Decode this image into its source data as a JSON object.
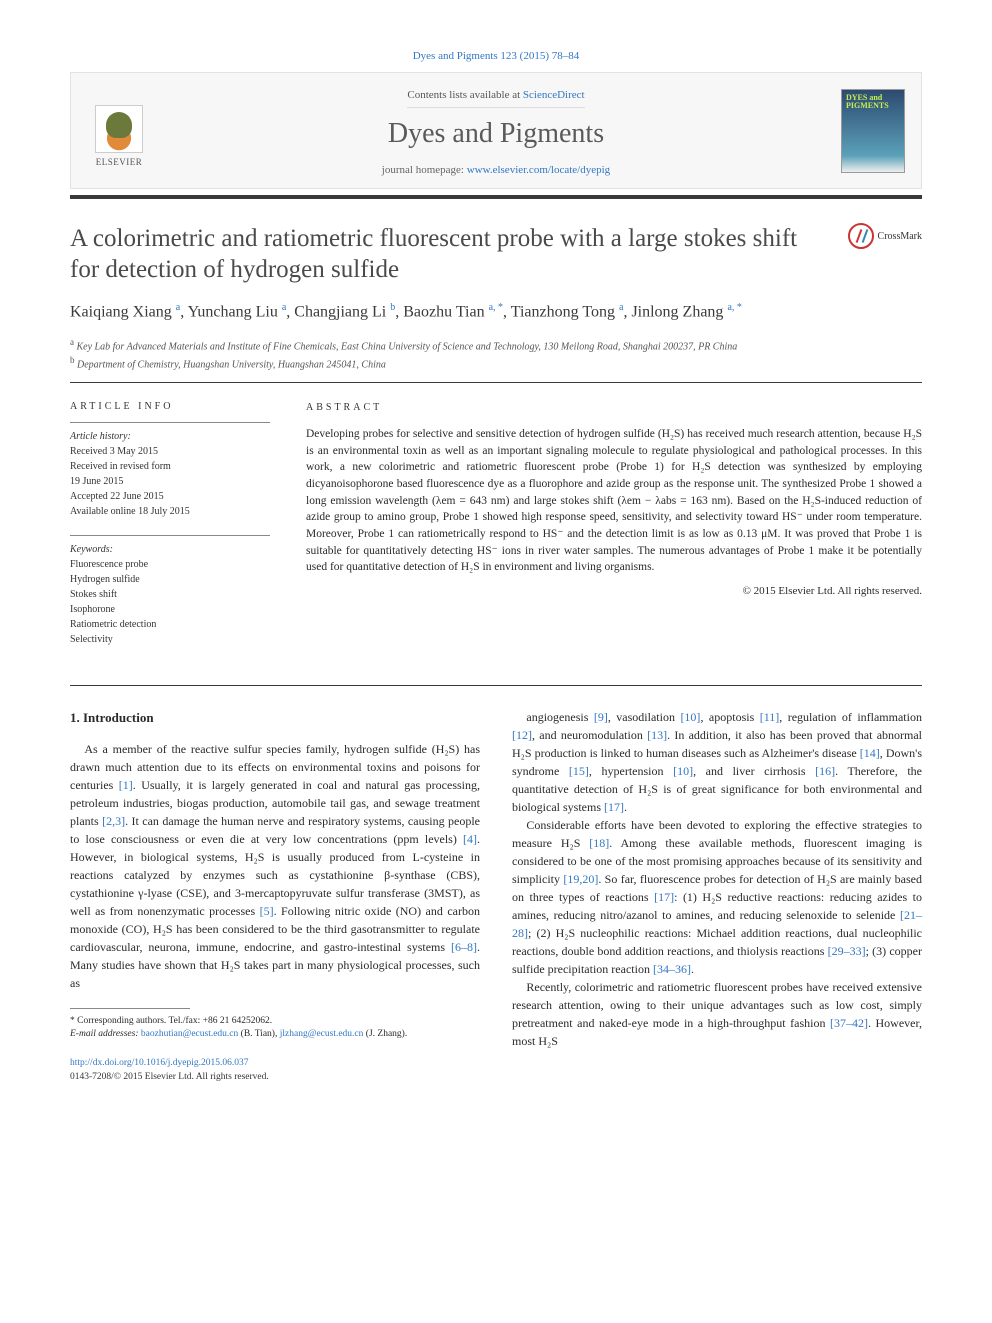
{
  "header": {
    "citation_line": "Dyes and Pigments 123 (2015) 78–84",
    "contents_prefix": "Contents lists available at ",
    "contents_link": "ScienceDirect",
    "journal_name": "Dyes and Pigments",
    "homepage_prefix": "journal homepage: ",
    "homepage_link": "www.elsevier.com/locate/dyepig",
    "elsevier_label": "ELSEVIER",
    "cover_text": "DYES and PIGMENTS"
  },
  "crossmark_label": "CrossMark",
  "article": {
    "title": "A colorimetric and ratiometric fluorescent probe with a large stokes shift for detection of hydrogen sulfide",
    "authors_html": "Kaiqiang Xiang <sup>a</sup>, Yunchang Liu <sup>a</sup>, Changjiang Li <sup>b</sup>, Baozhu Tian <sup>a, *</sup>, Tianzhong Tong <sup>a</sup>, Jinlong Zhang <sup>a, *</sup>",
    "affiliations": [
      {
        "marker": "a",
        "text": "Key Lab for Advanced Materials and Institute of Fine Chemicals, East China University of Science and Technology, 130 Meilong Road, Shanghai 200237, PR China"
      },
      {
        "marker": "b",
        "text": "Department of Chemistry, Huangshan University, Huangshan 245041, China"
      }
    ]
  },
  "article_info": {
    "heading": "ARTICLE INFO",
    "history_label": "Article history:",
    "history": [
      "Received 3 May 2015",
      "Received in revised form",
      "19 June 2015",
      "Accepted 22 June 2015",
      "Available online 18 July 2015"
    ],
    "keywords_label": "Keywords:",
    "keywords": [
      "Fluorescence probe",
      "Hydrogen sulfide",
      "Stokes shift",
      "Isophorone",
      "Ratiometric detection",
      "Selectivity"
    ]
  },
  "abstract": {
    "heading": "ABSTRACT",
    "text": "Developing probes for selective and sensitive detection of hydrogen sulfide (H₂S) has received much research attention, because H₂S is an environmental toxin as well as an important signaling molecule to regulate physiological and pathological processes. In this work, a new colorimetric and ratiometric fluorescent probe (Probe 1) for H₂S detection was synthesized by employing dicyanoisophorone based fluorescence dye as a fluorophore and azide group as the response unit. The synthesized Probe 1 showed a long emission wavelength (λem = 643 nm) and large stokes shift (λem − λabs = 163 nm). Based on the H₂S-induced reduction of azide group to amino group, Probe 1 showed high response speed, sensitivity, and selectivity toward HS⁻ under room temperature. Moreover, Probe 1 can ratiometrically respond to HS⁻ and the detection limit is as low as 0.13 μM. It was proved that Probe 1 is suitable for quantitatively detecting HS⁻ ions in river water samples. The numerous advantages of Probe 1 make it be potentially used for quantitative detection of H₂S in environment and living organisms.",
    "copyright": "© 2015 Elsevier Ltd. All rights reserved."
  },
  "body": {
    "section_heading": "1. Introduction",
    "p1": "As a member of the reactive sulfur species family, hydrogen sulfide (H₂S) has drawn much attention due to its effects on environmental toxins and poisons for centuries [1]. Usually, it is largely generated in coal and natural gas processing, petroleum industries, biogas production, automobile tail gas, and sewage treatment plants [2,3]. It can damage the human nerve and respiratory systems, causing people to lose consciousness or even die at very low concentrations (ppm levels) [4]. However, in biological systems, H₂S is usually produced from L-cysteine in reactions catalyzed by enzymes such as cystathionine β-synthase (CBS), cystathionine γ-lyase (CSE), and 3-mercaptopyruvate sulfur transferase (3MST), as well as from nonenzymatic processes [5]. Following nitric oxide (NO) and carbon monoxide (CO), H₂S has been considered to be the third gasotransmitter to regulate cardiovascular, neurona, immune, endocrine, and gastro-intestinal systems [6–8]. Many studies have shown that H₂S takes part in many physiological processes, such as",
    "p2": "angiogenesis [9], vasodilation [10], apoptosis [11], regulation of inflammation [12], and neuromodulation [13]. In addition, it also has been proved that abnormal H₂S production is linked to human diseases such as Alzheimer's disease [14], Down's syndrome [15], hypertension [10], and liver cirrhosis [16]. Therefore, the quantitative detection of H₂S is of great significance for both environmental and biological systems [17].",
    "p3": "Considerable efforts have been devoted to exploring the effective strategies to measure H₂S [18]. Among these available methods, fluorescent imaging is considered to be one of the most promising approaches because of its sensitivity and simplicity [19,20]. So far, fluorescence probes for detection of H₂S are mainly based on three types of reactions [17]: (1) H₂S reductive reactions: reducing azides to amines, reducing nitro/azanol to amines, and reducing selenoxide to selenide [21–28]; (2) H₂S nucleophilic reactions: Michael addition reactions, dual nucleophilic reactions, double bond addition reactions, and thiolysis reactions [29–33]; (3) copper sulfide precipitation reaction [34–36].",
    "p4": "Recently, colorimetric and ratiometric fluorescent probes have received extensive research attention, owing to their unique advantages such as low cost, simply pretreatment and naked-eye mode in a high-throughput fashion [37–42]. However, most H₂S"
  },
  "footnotes": {
    "corresponding": "* Corresponding authors. Tel./fax: +86 21 64252062.",
    "emails_label": "E-mail addresses:",
    "email1": "baozhutian@ecust.edu.cn",
    "email1_who": "(B. Tian),",
    "email2": "jlzhang@ecust.edu.cn",
    "email2_who": "(J. Zhang)."
  },
  "doi": {
    "url": "http://dx.doi.org/10.1016/j.dyepig.2015.06.037",
    "issn_line": "0143-7208/© 2015 Elsevier Ltd. All rights reserved."
  },
  "refs": {
    "r1": "[1]",
    "r23": "[2,3]",
    "r4": "[4]",
    "r5": "[5]",
    "r68": "[6–8]",
    "r9": "[9]",
    "r10a": "[10]",
    "r11": "[11]",
    "r12": "[12]",
    "r13": "[13]",
    "r14": "[14]",
    "r15": "[15]",
    "r10b": "[10]",
    "r16": "[16]",
    "r17a": "[17]",
    "r18": "[18]",
    "r1920": "[19,20]",
    "r17b": "[17]",
    "r2128": "[21–28]",
    "r2933": "[29–33]",
    "r3436": "[34–36]",
    "r3742": "[37–42]"
  },
  "colors": {
    "link": "#3277c3",
    "rule": "#3a3a3a",
    "text": "#2a2a2a"
  }
}
